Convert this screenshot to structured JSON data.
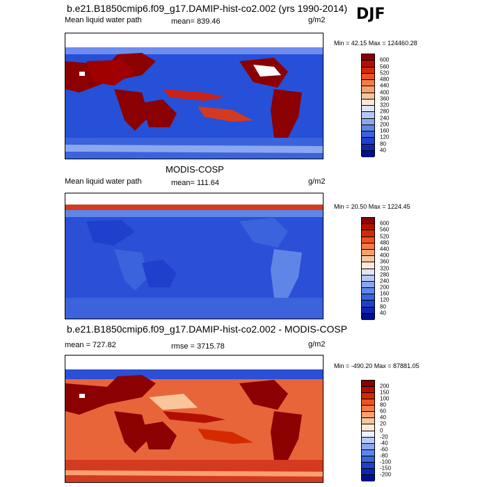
{
  "season": "DJF",
  "chart_data": [
    {
      "type": "heatmap",
      "title": "b.e21.B1850cmip6.f09_g17.DAMIP-hist-co2.002 (yrs 1990-2014)",
      "left_label": "Mean liquid water path",
      "center_label": "mean= 839.46",
      "units": "g/m2",
      "minmax": "Min =  42.15 Max = 124460.28",
      "colorbar": {
        "levels": [
          "600",
          "560",
          "520",
          "480",
          "440",
          "400",
          "360",
          "320",
          "280",
          "240",
          "200",
          "160",
          "120",
          "80",
          "40"
        ],
        "colors": [
          "#8b0000",
          "#b30f00",
          "#d42a00",
          "#ea5420",
          "#f47b45",
          "#f9a070",
          "#fbc59c",
          "#fde8d8",
          "#dfe6fb",
          "#b6c8f6",
          "#8ba7ef",
          "#5f86e6",
          "#3a63dc",
          "#1f40cc",
          "#0d26b0",
          "#00108a"
        ]
      }
    },
    {
      "type": "heatmap",
      "title": "MODIS-COSP",
      "left_label": "Mean liquid water path",
      "center_label": "mean= 111.64",
      "units": "g/m2",
      "minmax": "Min =  20.50 Max = 1224.45",
      "colorbar": {
        "levels": [
          "600",
          "560",
          "520",
          "480",
          "440",
          "400",
          "360",
          "320",
          "280",
          "240",
          "200",
          "160",
          "120",
          "80",
          "40"
        ],
        "colors": [
          "#8b0000",
          "#b30f00",
          "#d42a00",
          "#ea5420",
          "#f47b45",
          "#f9a070",
          "#fbc59c",
          "#fde8d8",
          "#dfe6fb",
          "#b6c8f6",
          "#8ba7ef",
          "#5f86e6",
          "#3a63dc",
          "#1f40cc",
          "#0d26b0",
          "#00108a"
        ]
      }
    },
    {
      "type": "heatmap",
      "title": "b.e21.B1850cmip6.f09_g17.DAMIP-hist-co2.002 - MODIS-COSP",
      "left_label": "mean = 727.82",
      "center_label": "rmse = 3715.78",
      "units": "g/m2",
      "minmax": "Min = -490.20 Max = 87881.05",
      "colorbar": {
        "levels": [
          "200",
          "150",
          "100",
          "80",
          "60",
          "40",
          "20",
          "0",
          "-20",
          "-40",
          "-60",
          "-80",
          "-100",
          "-150",
          "-200"
        ],
        "colors": [
          "#8b0000",
          "#b30f00",
          "#d42a00",
          "#ea5420",
          "#f47b45",
          "#f9a070",
          "#fbc59c",
          "#fde8d8",
          "#eef1fb",
          "#b6c8f6",
          "#8ba7ef",
          "#5f86e6",
          "#3a63dc",
          "#1f40cc",
          "#0d26b0",
          "#00108a"
        ]
      }
    }
  ]
}
